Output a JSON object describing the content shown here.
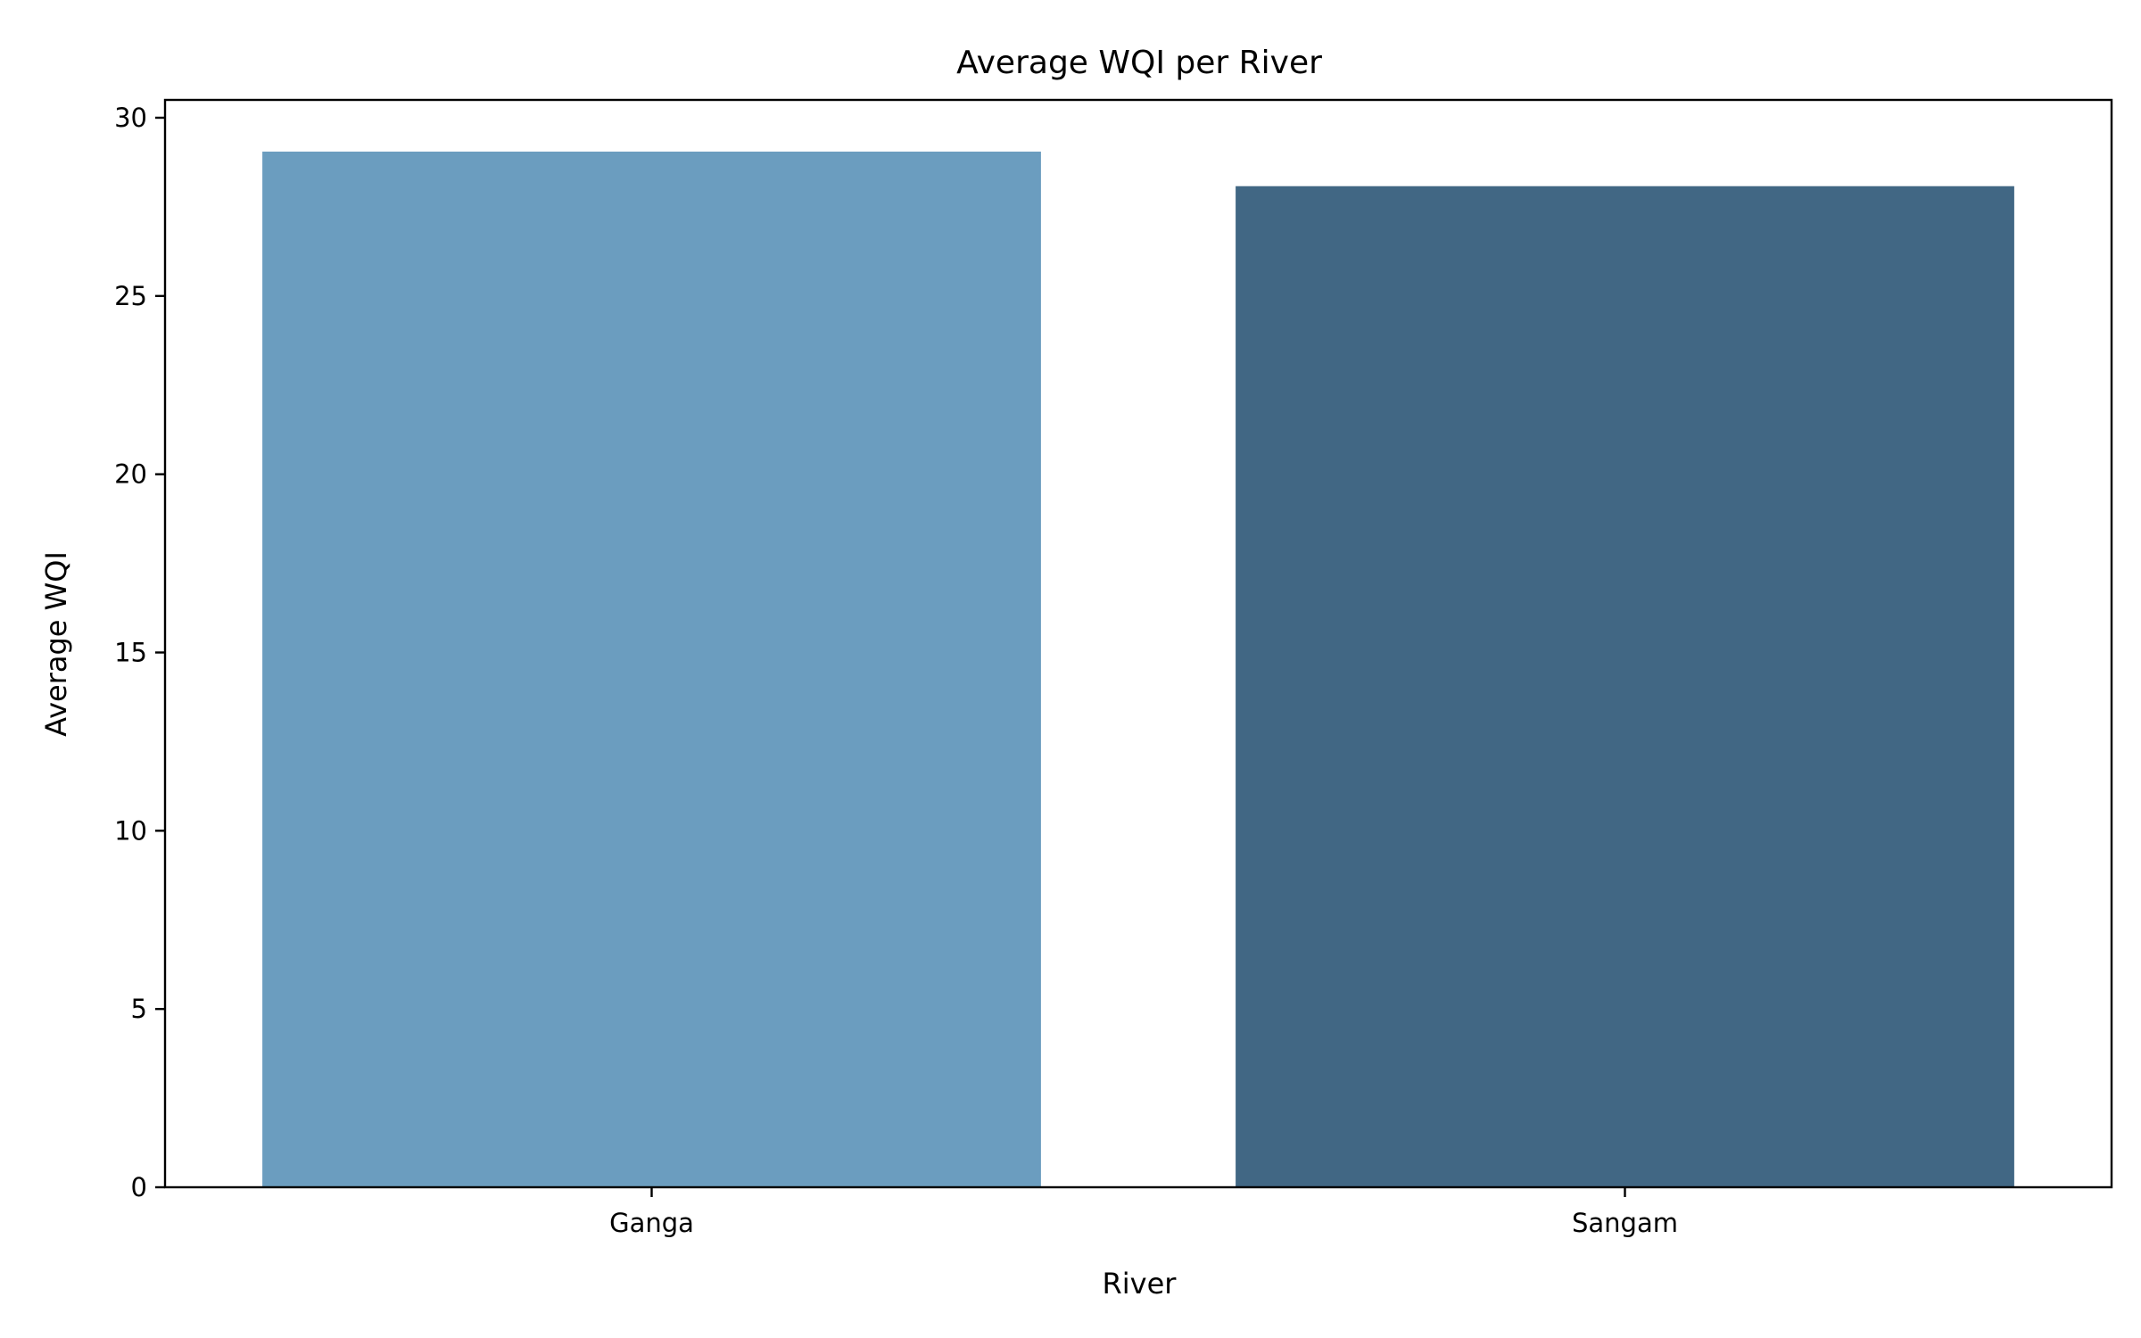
{
  "chart_data": {
    "type": "bar",
    "title": "Average WQI per River",
    "xlabel": "River",
    "ylabel": "Average WQI",
    "categories": [
      "Ganga",
      "Sangam"
    ],
    "values": [
      29.05,
      28.08
    ],
    "colors": [
      "#6b9dbf",
      "#416784"
    ],
    "ylim": [
      0,
      30.5
    ],
    "yticks": [
      0,
      5,
      10,
      15,
      20,
      25,
      30
    ],
    "ytick_labels": [
      "0",
      "5",
      "10",
      "15",
      "20",
      "25",
      "30"
    ],
    "grid": false
  }
}
